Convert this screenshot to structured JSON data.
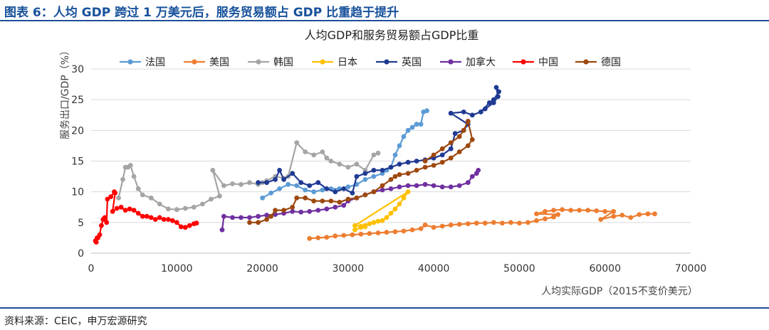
{
  "figure": {
    "title": "图表 6：人均 GDP 跨过 1 万美元后，服务贸易额占 GDP 比重趋于提升",
    "source": "资料来源：CEIC，申万宏源研究",
    "colors": {
      "title": "#17519b",
      "rule": "#1f4e9a"
    }
  },
  "chart_data": {
    "type": "scatter",
    "title": "人均GDP和服务贸易额占GDP比重",
    "xlabel": "人均实际GDP（2015不变价美元）",
    "ylabel": "服务出口/GDP（%）",
    "xlim": [
      0,
      70000
    ],
    "ylim": [
      0,
      30
    ],
    "xticks": [
      "0",
      "10000",
      "20000",
      "30000",
      "40000",
      "50000",
      "60000",
      "70000"
    ],
    "yticks": [
      "0",
      "5",
      "10",
      "15",
      "20",
      "25",
      "30"
    ],
    "grid": "horizontal",
    "legend": "top",
    "connected": true,
    "series": [
      {
        "name": "法国",
        "color": "#5b9bd5",
        "points": [
          [
            20000,
            9.0
          ],
          [
            21000,
            9.8
          ],
          [
            22000,
            10.5
          ],
          [
            23000,
            11.2
          ],
          [
            24000,
            11.0
          ],
          [
            25000,
            10.3
          ],
          [
            26000,
            10.0
          ],
          [
            27000,
            10.3
          ],
          [
            28000,
            10.5
          ],
          [
            29000,
            10.5
          ],
          [
            30000,
            10.8
          ],
          [
            31000,
            11.2
          ],
          [
            32000,
            12.0
          ],
          [
            33000,
            12.5
          ],
          [
            34000,
            13.0
          ],
          [
            34500,
            13.5
          ],
          [
            35000,
            14.0
          ],
          [
            35500,
            16.0
          ],
          [
            36000,
            17.5
          ],
          [
            36500,
            19.0
          ],
          [
            37000,
            20.0
          ],
          [
            37500,
            20.5
          ],
          [
            38000,
            21.0
          ],
          [
            38500,
            21.0
          ],
          [
            38800,
            23.0
          ],
          [
            39200,
            23.2
          ]
        ]
      },
      {
        "name": "美国",
        "color": "#ed7d31",
        "points": [
          [
            25500,
            2.4
          ],
          [
            26500,
            2.5
          ],
          [
            27500,
            2.6
          ],
          [
            28500,
            2.8
          ],
          [
            29500,
            2.9
          ],
          [
            30500,
            3.0
          ],
          [
            31500,
            3.1
          ],
          [
            32500,
            3.2
          ],
          [
            33500,
            3.3
          ],
          [
            34500,
            3.4
          ],
          [
            35500,
            3.5
          ],
          [
            36500,
            3.6
          ],
          [
            37500,
            3.8
          ],
          [
            38500,
            4.0
          ],
          [
            39000,
            4.6
          ],
          [
            40000,
            4.2
          ],
          [
            41000,
            4.4
          ],
          [
            42000,
            4.6
          ],
          [
            43000,
            4.7
          ],
          [
            44000,
            4.8
          ],
          [
            45000,
            4.9
          ],
          [
            46000,
            4.9
          ],
          [
            47000,
            5.0
          ],
          [
            48000,
            4.9
          ],
          [
            49000,
            5.0
          ],
          [
            50000,
            4.9
          ],
          [
            51000,
            5.0
          ],
          [
            52000,
            5.3
          ],
          [
            53000,
            5.6
          ],
          [
            54000,
            5.9
          ],
          [
            54500,
            6.3
          ],
          [
            52000,
            6.4
          ],
          [
            53000,
            6.8
          ],
          [
            54000,
            7.0
          ],
          [
            55000,
            7.1
          ],
          [
            56000,
            7.0
          ],
          [
            57000,
            7.0
          ],
          [
            58000,
            7.0
          ],
          [
            59000,
            6.9
          ],
          [
            60000,
            6.8
          ],
          [
            61000,
            6.8
          ],
          [
            59500,
            5.5
          ],
          [
            61000,
            6.0
          ],
          [
            62000,
            6.2
          ],
          [
            63000,
            5.8
          ],
          [
            64000,
            6.3
          ],
          [
            65000,
            6.4
          ],
          [
            65800,
            6.4
          ]
        ]
      },
      {
        "name": "韩国",
        "color": "#a5a5a5",
        "points": [
          [
            3200,
            9.0
          ],
          [
            3700,
            12.0
          ],
          [
            4000,
            14.0
          ],
          [
            4300,
            14.0
          ],
          [
            4600,
            14.3
          ],
          [
            5000,
            12.5
          ],
          [
            5500,
            10.5
          ],
          [
            6000,
            9.5
          ],
          [
            7000,
            9.0
          ],
          [
            8000,
            8.0
          ],
          [
            9000,
            7.2
          ],
          [
            10000,
            7.1
          ],
          [
            11000,
            7.3
          ],
          [
            12000,
            7.5
          ],
          [
            13000,
            8.0
          ],
          [
            14000,
            8.8
          ],
          [
            15000,
            9.3
          ],
          [
            14200,
            13.5
          ],
          [
            15500,
            11.0
          ],
          [
            16500,
            11.3
          ],
          [
            17500,
            11.2
          ],
          [
            18500,
            11.5
          ],
          [
            19500,
            11.2
          ],
          [
            20000,
            11.5
          ],
          [
            20500,
            11.8
          ],
          [
            21500,
            12.5
          ],
          [
            22500,
            12.2
          ],
          [
            23000,
            12.5
          ],
          [
            24000,
            18.0
          ],
          [
            25000,
            16.5
          ],
          [
            26000,
            16.0
          ],
          [
            27000,
            16.5
          ],
          [
            27500,
            15.5
          ],
          [
            28000,
            15.0
          ],
          [
            29000,
            14.5
          ],
          [
            30000,
            14.0
          ],
          [
            31000,
            14.5
          ],
          [
            32000,
            13.5
          ],
          [
            33000,
            16.0
          ],
          [
            33500,
            16.3
          ]
        ]
      },
      {
        "name": "日本",
        "color": "#ffc000",
        "points": [
          [
            30800,
            3.8
          ],
          [
            31500,
            4.2
          ],
          [
            32000,
            4.5
          ],
          [
            32500,
            4.8
          ],
          [
            33000,
            5.0
          ],
          [
            33500,
            5.2
          ],
          [
            34000,
            5.3
          ],
          [
            34500,
            5.8
          ],
          [
            35000,
            6.5
          ],
          [
            35500,
            7.2
          ],
          [
            36000,
            8.0
          ],
          [
            36500,
            9.0
          ],
          [
            37000,
            10.0
          ],
          [
            30800,
            4.5
          ],
          [
            31500,
            4.4
          ],
          [
            32000,
            4.3
          ]
        ]
      },
      {
        "name": "英国",
        "color": "#1f3a93",
        "points": [
          [
            19500,
            11.5
          ],
          [
            20500,
            11.5
          ],
          [
            21500,
            12.0
          ],
          [
            22000,
            13.5
          ],
          [
            22500,
            12.0
          ],
          [
            23500,
            13.0
          ],
          [
            24500,
            11.5
          ],
          [
            25500,
            11.0
          ],
          [
            26500,
            11.5
          ],
          [
            27500,
            10.5
          ],
          [
            28500,
            10.0
          ],
          [
            29500,
            10.5
          ],
          [
            30500,
            9.8
          ],
          [
            31000,
            12.5
          ],
          [
            32000,
            13.0
          ],
          [
            33000,
            13.5
          ],
          [
            34000,
            13.5
          ],
          [
            35000,
            14.0
          ],
          [
            36000,
            14.5
          ],
          [
            37000,
            14.8
          ],
          [
            38000,
            15.0
          ],
          [
            39000,
            15.2
          ],
          [
            40000,
            15.5
          ],
          [
            41000,
            16.0
          ],
          [
            42000,
            17.0
          ],
          [
            42500,
            19.5
          ],
          [
            43500,
            20.0
          ],
          [
            44000,
            21.0
          ],
          [
            42000,
            22.8
          ],
          [
            43500,
            23.0
          ],
          [
            44500,
            22.5
          ],
          [
            45500,
            23.0
          ],
          [
            46000,
            23.5
          ],
          [
            47000,
            24.5
          ],
          [
            47500,
            25.5
          ],
          [
            47300,
            27.0
          ],
          [
            47600,
            26.3
          ],
          [
            47000,
            25.0
          ],
          [
            46500,
            24.5
          ],
          [
            45500,
            23.0
          ]
        ]
      },
      {
        "name": "加拿大",
        "color": "#7030a0",
        "points": [
          [
            15300,
            3.8
          ],
          [
            15500,
            6.0
          ],
          [
            16500,
            5.8
          ],
          [
            17500,
            5.8
          ],
          [
            18500,
            5.8
          ],
          [
            19500,
            6.0
          ],
          [
            20500,
            6.2
          ],
          [
            21500,
            6.3
          ],
          [
            22500,
            6.5
          ],
          [
            23500,
            6.8
          ],
          [
            24500,
            6.7
          ],
          [
            25500,
            6.8
          ],
          [
            26500,
            7.0
          ],
          [
            27500,
            7.2
          ],
          [
            28500,
            7.5
          ],
          [
            29500,
            7.8
          ],
          [
            30000,
            8.5
          ],
          [
            31000,
            9.0
          ],
          [
            32000,
            9.5
          ],
          [
            33000,
            10.0
          ],
          [
            34000,
            10.3
          ],
          [
            35000,
            10.5
          ],
          [
            36000,
            10.8
          ],
          [
            37000,
            11.0
          ],
          [
            38000,
            11.0
          ],
          [
            39000,
            11.2
          ],
          [
            40000,
            11.0
          ],
          [
            41000,
            10.8
          ],
          [
            42000,
            10.8
          ],
          [
            43000,
            11.0
          ],
          [
            44000,
            11.5
          ],
          [
            44500,
            12.5
          ],
          [
            45000,
            13.0
          ],
          [
            45200,
            13.5
          ]
        ]
      },
      {
        "name": "中国",
        "color": "#ff0000",
        "points": [
          [
            500,
            2.0
          ],
          [
            600,
            1.8
          ],
          [
            700,
            2.5
          ],
          [
            800,
            2.5
          ],
          [
            1000,
            3.0
          ],
          [
            1200,
            4.5
          ],
          [
            1400,
            5.5
          ],
          [
            1600,
            5.8
          ],
          [
            1800,
            5.0
          ],
          [
            1900,
            8.8
          ],
          [
            2300,
            9.2
          ],
          [
            2700,
            10.0
          ],
          [
            2800,
            9.8
          ],
          [
            2500,
            6.8
          ],
          [
            3000,
            7.3
          ],
          [
            3500,
            7.5
          ],
          [
            4000,
            7.0
          ],
          [
            4500,
            7.2
          ],
          [
            5000,
            7.0
          ],
          [
            5500,
            6.5
          ],
          [
            6000,
            6.0
          ],
          [
            6500,
            6.0
          ],
          [
            7000,
            5.8
          ],
          [
            7500,
            5.5
          ],
          [
            8000,
            5.8
          ],
          [
            8500,
            5.5
          ],
          [
            9000,
            5.5
          ],
          [
            9500,
            5.3
          ],
          [
            10000,
            5.0
          ],
          [
            10500,
            4.3
          ],
          [
            11000,
            4.2
          ],
          [
            11500,
            4.5
          ],
          [
            12000,
            4.8
          ],
          [
            12300,
            4.9
          ]
        ]
      },
      {
        "name": "德国",
        "color": "#9e480e",
        "points": [
          [
            18500,
            5.0
          ],
          [
            19500,
            5.0
          ],
          [
            20500,
            5.5
          ],
          [
            21000,
            6.0
          ],
          [
            21500,
            7.0
          ],
          [
            22500,
            7.0
          ],
          [
            23500,
            7.5
          ],
          [
            24000,
            9.0
          ],
          [
            25000,
            9.0
          ],
          [
            26000,
            8.5
          ],
          [
            27000,
            8.5
          ],
          [
            28000,
            8.5
          ],
          [
            29000,
            8.3
          ],
          [
            30000,
            8.8
          ],
          [
            31000,
            9.0
          ],
          [
            32000,
            9.5
          ],
          [
            33000,
            10.0
          ],
          [
            34000,
            11.0
          ],
          [
            35000,
            12.0
          ],
          [
            35500,
            12.5
          ],
          [
            36000,
            12.8
          ],
          [
            37000,
            13.0
          ],
          [
            38000,
            13.5
          ],
          [
            39000,
            14.0
          ],
          [
            40000,
            14.3
          ],
          [
            41000,
            14.8
          ],
          [
            42000,
            15.5
          ],
          [
            43000,
            16.5
          ],
          [
            44000,
            17.5
          ],
          [
            44500,
            18.5
          ],
          [
            44000,
            21.5
          ],
          [
            43500,
            20.0
          ],
          [
            43000,
            19.0
          ],
          [
            42000,
            18.0
          ],
          [
            41000,
            17.0
          ],
          [
            40000,
            16.0
          ],
          [
            39000,
            15.0
          ]
        ]
      }
    ]
  }
}
